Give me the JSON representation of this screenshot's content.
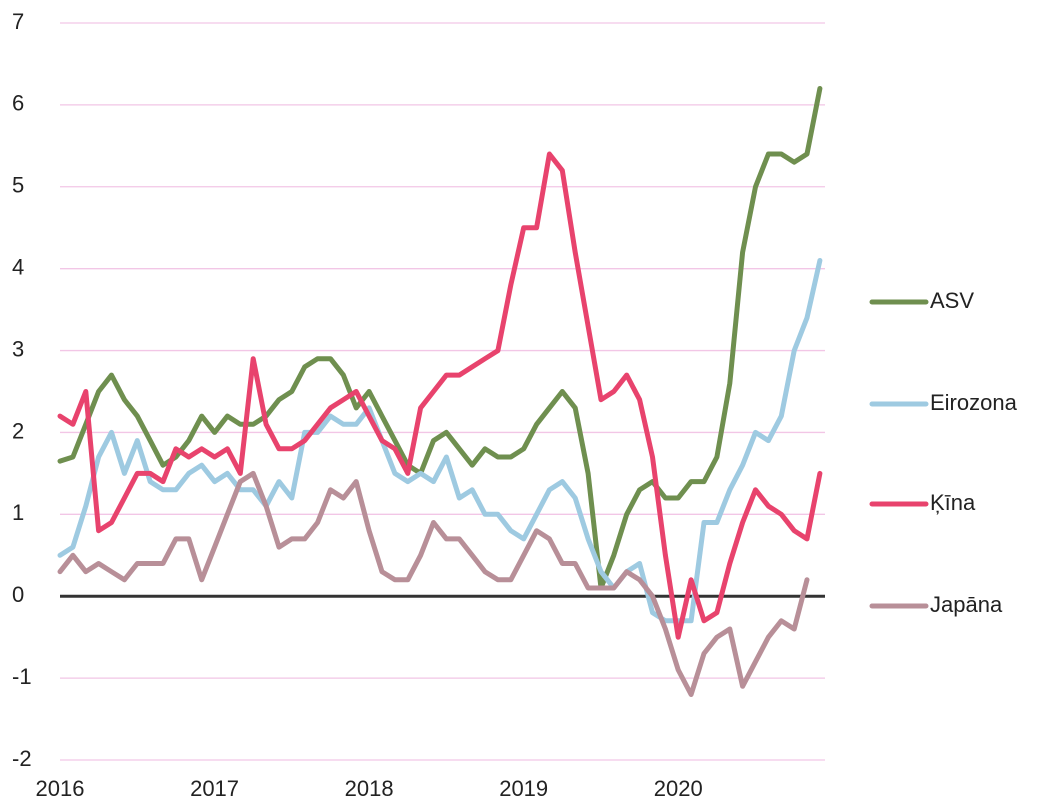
{
  "chart_data": {
    "type": "line",
    "categories": [
      "2016",
      null,
      null,
      null,
      null,
      null,
      null,
      null,
      null,
      null,
      null,
      null,
      "2017",
      null,
      null,
      null,
      null,
      null,
      null,
      null,
      null,
      null,
      null,
      null,
      "2018",
      null,
      null,
      null,
      null,
      null,
      null,
      null,
      null,
      null,
      null,
      null,
      "2019",
      null,
      null,
      null,
      null,
      null,
      null,
      null,
      null,
      null,
      null,
      null,
      "2020",
      null,
      null,
      null,
      null,
      null,
      null,
      null,
      null,
      null,
      null,
      null
    ],
    "series": [
      {
        "name": "ASV",
        "color": "#6f8f4f",
        "values": [
          1.65,
          1.7,
          2.1,
          2.5,
          2.7,
          2.4,
          2.2,
          1.9,
          1.6,
          1.7,
          1.9,
          2.2,
          2.0,
          2.2,
          2.1,
          2.1,
          2.2,
          2.4,
          2.5,
          2.8,
          2.9,
          2.9,
          2.7,
          2.3,
          2.5,
          2.2,
          1.9,
          1.6,
          1.5,
          1.9,
          2.0,
          1.8,
          1.6,
          1.8,
          1.7,
          1.7,
          1.8,
          2.1,
          2.3,
          2.5,
          2.3,
          1.5,
          0.1,
          0.5,
          1.0,
          1.3,
          1.4,
          1.2,
          1.2,
          1.4,
          1.4,
          1.7,
          2.6,
          4.2,
          5.0,
          5.4,
          5.4,
          5.3,
          5.4,
          6.2
        ]
      },
      {
        "name": "Eirozona",
        "color": "#9ecae1",
        "values": [
          0.5,
          0.6,
          1.1,
          1.7,
          2.0,
          1.5,
          1.9,
          1.4,
          1.3,
          1.3,
          1.5,
          1.6,
          1.4,
          1.5,
          1.3,
          1.3,
          1.1,
          1.4,
          1.2,
          2.0,
          2.0,
          2.2,
          2.1,
          2.1,
          2.3,
          1.9,
          1.5,
          1.4,
          1.5,
          1.4,
          1.7,
          1.2,
          1.3,
          1.0,
          1.0,
          0.8,
          0.7,
          1.0,
          1.3,
          1.4,
          1.2,
          0.7,
          0.3,
          0.1,
          0.3,
          0.4,
          -0.2,
          -0.3,
          -0.3,
          -0.3,
          0.9,
          0.9,
          1.3,
          1.6,
          2.0,
          1.9,
          2.2,
          3.0,
          3.4,
          4.1
        ]
      },
      {
        "name": "Ķīna",
        "color": "#e8436d",
        "values": [
          2.2,
          2.1,
          2.5,
          0.8,
          0.9,
          1.2,
          1.5,
          1.5,
          1.4,
          1.8,
          1.7,
          1.8,
          1.7,
          1.8,
          1.5,
          2.9,
          2.1,
          1.8,
          1.8,
          1.9,
          2.1,
          2.3,
          2.4,
          2.5,
          2.2,
          1.9,
          1.8,
          1.5,
          2.3,
          2.5,
          2.7,
          2.7,
          2.8,
          2.9,
          3.0,
          3.8,
          4.5,
          4.5,
          5.4,
          5.2,
          4.2,
          3.3,
          2.4,
          2.5,
          2.7,
          2.4,
          1.7,
          0.5,
          -0.5,
          0.2,
          -0.3,
          -0.2,
          0.4,
          0.9,
          1.3,
          1.1,
          1.0,
          0.8,
          0.7,
          1.5
        ]
      },
      {
        "name": "Japāna",
        "color": "#b88f98",
        "values": [
          0.3,
          0.5,
          0.3,
          0.4,
          0.3,
          0.2,
          0.4,
          0.4,
          0.4,
          0.7,
          0.7,
          0.2,
          0.6,
          1.0,
          1.4,
          1.5,
          1.1,
          0.6,
          0.7,
          0.7,
          0.9,
          1.3,
          1.2,
          1.4,
          0.8,
          0.3,
          0.2,
          0.2,
          0.5,
          0.9,
          0.7,
          0.7,
          0.5,
          0.3,
          0.2,
          0.2,
          0.5,
          0.8,
          0.7,
          0.4,
          0.4,
          0.1,
          0.1,
          0.1,
          0.3,
          0.2,
          0.0,
          -0.4,
          -0.9,
          -1.2,
          -0.7,
          -0.5,
          -0.4,
          -1.1,
          -0.8,
          -0.5,
          -0.3,
          -0.4,
          0.2,
          null
        ]
      }
    ],
    "ylim": [
      -2,
      7
    ],
    "yticks": [
      -2,
      -1,
      0,
      1,
      2,
      3,
      4,
      5,
      6,
      7
    ],
    "grid": true,
    "legend": "right"
  }
}
